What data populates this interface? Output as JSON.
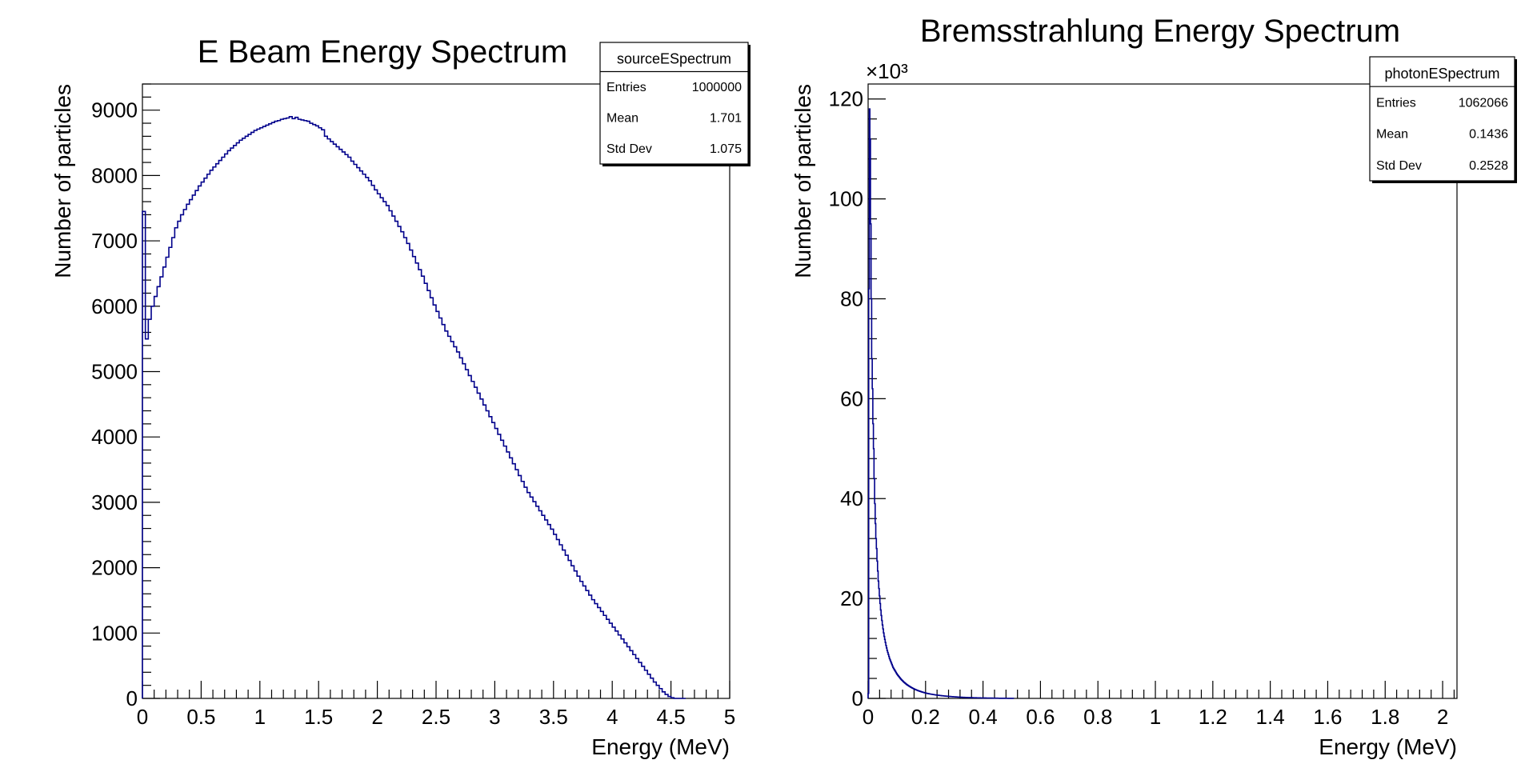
{
  "chart_data": [
    {
      "type": "bar",
      "title": "E Beam Energy Spectrum",
      "xlabel": "Energy (MeV)",
      "ylabel": "Number of particles",
      "xlim": [
        0,
        5
      ],
      "ylim": [
        0,
        9400
      ],
      "x_ticks": [
        "0",
        "0.5",
        "1",
        "1.5",
        "2",
        "2.5",
        "3",
        "3.5",
        "4",
        "4.5",
        "5"
      ],
      "y_ticks": [
        "0",
        "1000",
        "2000",
        "3000",
        "4000",
        "5000",
        "6000",
        "7000",
        "8000",
        "9000"
      ],
      "exponent_label": "",
      "line_color": "#00008b",
      "stats": {
        "name": "sourceESpectrum",
        "rows": [
          {
            "label": "Entries",
            "value": "1000000"
          },
          {
            "label": "Mean",
            "value": "1.701"
          },
          {
            "label": "Std Dev",
            "value": "1.075"
          }
        ]
      },
      "bin_width": 0.025,
      "values": [
        7450,
        5500,
        5800,
        6000,
        6150,
        6300,
        6450,
        6600,
        6750,
        6900,
        7050,
        7200,
        7300,
        7400,
        7480,
        7560,
        7630,
        7700,
        7770,
        7840,
        7900,
        7960,
        8020,
        8080,
        8130,
        8180,
        8230,
        8280,
        8330,
        8380,
        8420,
        8460,
        8500,
        8540,
        8570,
        8600,
        8630,
        8660,
        8690,
        8710,
        8730,
        8750,
        8770,
        8790,
        8810,
        8830,
        8840,
        8860,
        8870,
        8880,
        8900,
        8870,
        8890,
        8860,
        8850,
        8840,
        8830,
        8800,
        8780,
        8760,
        8730,
        8700,
        8600,
        8560,
        8520,
        8480,
        8440,
        8400,
        8360,
        8320,
        8280,
        8220,
        8170,
        8120,
        8070,
        8020,
        7970,
        7920,
        7850,
        7780,
        7720,
        7660,
        7600,
        7540,
        7460,
        7380,
        7300,
        7220,
        7140,
        7050,
        6960,
        6860,
        6760,
        6660,
        6560,
        6460,
        6350,
        6240,
        6130,
        6020,
        5920,
        5820,
        5720,
        5620,
        5540,
        5460,
        5380,
        5300,
        5210,
        5120,
        5030,
        4940,
        4850,
        4760,
        4670,
        4580,
        4490,
        4400,
        4310,
        4220,
        4130,
        4040,
        3950,
        3860,
        3770,
        3680,
        3590,
        3500,
        3410,
        3320,
        3230,
        3150,
        3080,
        3010,
        2940,
        2870,
        2800,
        2730,
        2660,
        2590,
        2510,
        2430,
        2350,
        2270,
        2190,
        2110,
        2030,
        1950,
        1870,
        1790,
        1720,
        1650,
        1580,
        1510,
        1450,
        1390,
        1330,
        1270,
        1210,
        1150,
        1090,
        1030,
        970,
        910,
        850,
        790,
        730,
        670,
        610,
        550,
        490,
        430,
        370,
        310,
        250,
        200,
        150,
        100,
        60,
        30,
        10,
        0,
        0,
        0,
        0
      ]
    },
    {
      "type": "bar",
      "title": "Bremsstrahlung Energy Spectrum",
      "xlabel": "Energy (MeV)",
      "ylabel": "Number of particles",
      "xlim": [
        0,
        2.05
      ],
      "ylim": [
        0,
        123000
      ],
      "x_ticks": [
        "0",
        "0.2",
        "0.4",
        "0.6",
        "0.8",
        "1",
        "1.2",
        "1.4",
        "1.6",
        "1.8",
        "2"
      ],
      "y_ticks": [
        "0",
        "20",
        "40",
        "60",
        "80",
        "100",
        "120"
      ],
      "exponent_label": "×10³",
      "line_color": "#00008b",
      "stats": {
        "name": "photonESpectrum",
        "rows": [
          {
            "label": "Entries",
            "value": "1062066"
          },
          {
            "label": "Mean",
            "value": "0.1436"
          },
          {
            "label": "Std Dev",
            "value": "0.2528"
          }
        ]
      },
      "bin_width": 0.00205,
      "values": [
        1000,
        82000,
        118000,
        112000,
        95000,
        80000,
        68000,
        62000,
        55000,
        50000,
        44000,
        39000,
        35000,
        32000,
        30000,
        27500,
        25500,
        23500,
        22000,
        20500,
        19000,
        17700,
        16600,
        15600,
        14700,
        13900,
        13100,
        12400,
        11800,
        11200,
        10600,
        10100,
        9600,
        9200,
        8800,
        8400,
        8000,
        7700,
        7400,
        7100,
        6800,
        6500,
        6200,
        6000,
        5800,
        5600,
        5400,
        5200,
        5000,
        4800,
        4650,
        4500,
        4350,
        4200,
        4050,
        3900,
        3780,
        3660,
        3540,
        3420,
        3300,
        3200,
        3100,
        3000,
        2900,
        2800,
        2720,
        2640,
        2560,
        2480,
        2400,
        2330,
        2260,
        2190,
        2120,
        2060,
        2000,
        1940,
        1880,
        1820,
        1770,
        1720,
        1670,
        1620,
        1570,
        1530,
        1490,
        1450,
        1410,
        1370,
        1330,
        1290,
        1255,
        1220,
        1185,
        1150,
        1120,
        1090,
        1060,
        1030,
        1000,
        975,
        950,
        925,
        900,
        880,
        860,
        840,
        820,
        800,
        780,
        760,
        740,
        720,
        700,
        685,
        670,
        655,
        640,
        625,
        610,
        595,
        580,
        565,
        550,
        538,
        526,
        514,
        502,
        490,
        478,
        466,
        455,
        444,
        433,
        422,
        412,
        402,
        392,
        382,
        372,
        362,
        353,
        344,
        335,
        326,
        318,
        310,
        302,
        294,
        286,
        279,
        272,
        265,
        258,
        251,
        245,
        239,
        233,
        227,
        221,
        215,
        210,
        205,
        200,
        195,
        190,
        185,
        180,
        176,
        172,
        168,
        164,
        160,
        156,
        152,
        148,
        144,
        140,
        137,
        134,
        131,
        128,
        125,
        122,
        119,
        116,
        113,
        110,
        107,
        104,
        101,
        98,
        96,
        94,
        92,
        90,
        88,
        86,
        84,
        82,
        80,
        78,
        76,
        74,
        72,
        70,
        68,
        66,
        64,
        62,
        60,
        58,
        56,
        54,
        52,
        50,
        48,
        46,
        44,
        42,
        40,
        38,
        36,
        34,
        32,
        30,
        29,
        28,
        27,
        26,
        25,
        24,
        23,
        22,
        21,
        20,
        19,
        18,
        17,
        16,
        15,
        14,
        13,
        12,
        11,
        10
      ]
    }
  ]
}
